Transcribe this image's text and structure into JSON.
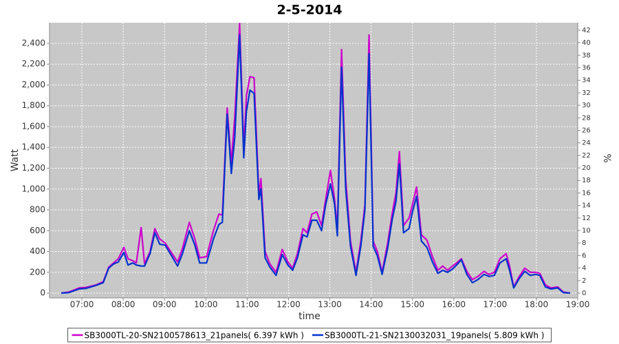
{
  "chart_data": {
    "type": "line",
    "title": "2-5-2014",
    "x_label": "time",
    "y_label": "Watt",
    "y2_label": "%",
    "x": [
      "06:30",
      "06:41",
      "06:56",
      "07:06",
      "07:21",
      "07:31",
      "07:39",
      "07:46",
      "07:53",
      "08:01",
      "08:07",
      "08:14",
      "08:19",
      "08:26",
      "08:31",
      "08:39",
      "08:46",
      "08:53",
      "09:01",
      "09:11",
      "09:19",
      "09:26",
      "09:36",
      "09:44",
      "09:51",
      "10:01",
      "10:11",
      "10:19",
      "10:24",
      "10:31",
      "10:37",
      "10:42",
      "10:49",
      "10:55",
      "10:59",
      "11:04",
      "11:10",
      "11:17",
      "11:20",
      "11:26",
      "11:33",
      "11:42",
      "11:51",
      "11:59",
      "12:06",
      "12:13",
      "12:21",
      "12:27",
      "12:34",
      "12:41",
      "12:48",
      "12:54",
      "13:01",
      "13:07",
      "13:11",
      "13:17",
      "13:23",
      "13:30",
      "13:38",
      "13:45",
      "13:51",
      "13:57",
      "14:03",
      "14:09",
      "14:16",
      "14:24",
      "14:31",
      "14:36",
      "14:41",
      "14:47",
      "14:55",
      "15:00",
      "15:06",
      "15:13",
      "15:21",
      "15:29",
      "15:37",
      "15:44",
      "15:51",
      "15:58",
      "16:04",
      "16:11",
      "16:19",
      "16:27",
      "16:35",
      "16:44",
      "16:51",
      "16:59",
      "17:07",
      "17:16",
      "17:21",
      "17:27",
      "17:35",
      "17:43",
      "17:51",
      "17:59",
      "18:05",
      "18:13",
      "18:21",
      "18:31",
      "18:39",
      "18:49"
    ],
    "series": [
      {
        "name": "SB3000TL-20-SN2100578613_21panels( 6.397 kWh )",
        "color": "#cc00cc",
        "values": [
          0,
          10,
          50,
          55,
          80,
          110,
          250,
          290,
          330,
          440,
          330,
          310,
          290,
          630,
          280,
          400,
          620,
          520,
          480,
          380,
          300,
          430,
          680,
          520,
          340,
          350,
          600,
          760,
          750,
          1780,
          1250,
          1700,
          2590,
          1400,
          1900,
          2080,
          2070,
          950,
          1100,
          400,
          280,
          200,
          420,
          300,
          240,
          380,
          620,
          580,
          760,
          780,
          650,
          900,
          1180,
          900,
          620,
          2340,
          1100,
          500,
          200,
          500,
          850,
          2480,
          500,
          400,
          200,
          480,
          780,
          960,
          1360,
          650,
          720,
          850,
          1020,
          560,
          510,
          350,
          220,
          260,
          220,
          260,
          290,
          330,
          210,
          130,
          160,
          210,
          180,
          200,
          330,
          380,
          260,
          60,
          160,
          240,
          200,
          200,
          190,
          80,
          50,
          60,
          10,
          0
        ]
      },
      {
        "name": "SB3000TL-21-SN2130032031_19panels( 5.809 kWh )",
        "color": "#0033cc",
        "values": [
          0,
          5,
          40,
          45,
          75,
          100,
          240,
          280,
          300,
          390,
          270,
          290,
          270,
          260,
          260,
          380,
          580,
          470,
          460,
          350,
          260,
          380,
          600,
          460,
          290,
          290,
          520,
          660,
          680,
          1720,
          1150,
          1500,
          2480,
          1300,
          1750,
          1950,
          1920,
          900,
          1000,
          340,
          250,
          170,
          370,
          270,
          220,
          340,
          560,
          540,
          700,
          700,
          600,
          850,
          1050,
          850,
          550,
          2170,
          1000,
          450,
          170,
          450,
          800,
          2300,
          450,
          360,
          180,
          430,
          720,
          880,
          1240,
          580,
          620,
          780,
          930,
          500,
          440,
          300,
          190,
          220,
          200,
          230,
          270,
          320,
          180,
          100,
          130,
          180,
          160,
          170,
          290,
          330,
          220,
          50,
          140,
          210,
          170,
          180,
          170,
          60,
          40,
          50,
          5,
          0
        ]
      }
    ],
    "xlim": [
      "06:13",
      "19:00"
    ],
    "xticks": [
      "07:00",
      "08:00",
      "09:00",
      "10:00",
      "11:00",
      "12:00",
      "13:00",
      "14:00",
      "15:00",
      "16:00",
      "17:00",
      "18:00",
      "19:00"
    ],
    "ylim": [
      -46,
      2598
    ],
    "yticks": [
      0,
      200,
      400,
      600,
      800,
      {
        "value": 1000,
        "label": "1,000"
      },
      {
        "value": 1200,
        "label": "1,200"
      },
      {
        "value": 1400,
        "label": "1,400"
      },
      {
        "value": 1600,
        "label": "1,600"
      },
      {
        "value": 1800,
        "label": "1,800"
      },
      {
        "value": 2000,
        "label": "2,000"
      },
      {
        "value": 2200,
        "label": "2,200"
      },
      {
        "value": 2400,
        "label": "2,400"
      }
    ],
    "y2lim": [
      -0.77,
      43.2
    ],
    "y2ticks": [
      0,
      2,
      4,
      6,
      8,
      10,
      12,
      14,
      16,
      18,
      20,
      22,
      24,
      26,
      28,
      30,
      32,
      34,
      36,
      38,
      40,
      42
    ],
    "grid": true,
    "legend": "bottom",
    "background": "#c8c8c8"
  }
}
